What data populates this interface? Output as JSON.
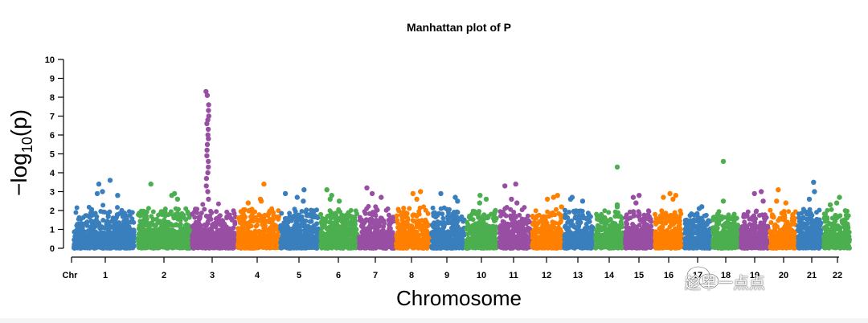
{
  "chart_data": {
    "type": "scatter",
    "title": "Manhattan plot of P",
    "xlabel": "Chromosome",
    "ylabel": "−log10(p)",
    "ylabel_main": "−log",
    "ylabel_sub": "10",
    "ylabel_paren": "(p)",
    "x_prefix_label": "Chr",
    "ylim": [
      0,
      10
    ],
    "yticks": [
      "0",
      "1",
      "2",
      "3",
      "4",
      "5",
      "6",
      "7",
      "8",
      "9",
      "10"
    ],
    "chromosomes": [
      {
        "label": "1",
        "color": "#3a7fbd",
        "base_max": 2.3,
        "top": [
          3.6,
          3.4,
          3.0,
          2.9,
          2.8
        ]
      },
      {
        "label": "2",
        "color": "#4caf4f",
        "base_max": 2.2,
        "top": [
          3.4,
          2.9,
          2.8,
          2.6
        ]
      },
      {
        "label": "3",
        "color": "#984ea3",
        "base_max": 2.4,
        "top": [
          8.3,
          8.1,
          7.6,
          7.3,
          7.0,
          6.8,
          6.6,
          6.3,
          6.0,
          5.8,
          5.5,
          5.2,
          4.9,
          4.6,
          4.3,
          4.0,
          3.7,
          3.3,
          3.0,
          2.6
        ]
      },
      {
        "label": "4",
        "color": "#ff7f00",
        "base_max": 2.2,
        "top": [
          3.4,
          2.6,
          2.5,
          2.4
        ]
      },
      {
        "label": "5",
        "color": "#3a7fbd",
        "base_max": 2.2,
        "top": [
          3.1,
          2.9,
          2.7,
          2.5
        ]
      },
      {
        "label": "6",
        "color": "#4caf4f",
        "base_max": 2.1,
        "top": [
          3.1,
          2.8,
          2.6,
          2.5
        ]
      },
      {
        "label": "7",
        "color": "#984ea3",
        "base_max": 2.3,
        "top": [
          3.2,
          2.9,
          2.7
        ]
      },
      {
        "label": "8",
        "color": "#ff7f00",
        "base_max": 2.2,
        "top": [
          3.0,
          2.9,
          2.6
        ]
      },
      {
        "label": "9",
        "color": "#3a7fbd",
        "base_max": 2.2,
        "top": [
          2.9,
          2.7,
          2.5
        ]
      },
      {
        "label": "10",
        "color": "#4caf4f",
        "base_max": 2.1,
        "top": [
          2.8,
          2.6,
          2.4
        ]
      },
      {
        "label": "11",
        "color": "#984ea3",
        "base_max": 2.2,
        "top": [
          3.4,
          3.3,
          2.6,
          2.4
        ]
      },
      {
        "label": "12",
        "color": "#ff7f00",
        "base_max": 2.2,
        "top": [
          2.8,
          2.7,
          2.6
        ]
      },
      {
        "label": "13",
        "color": "#3a7fbd",
        "base_max": 2.1,
        "top": [
          2.7,
          2.6,
          2.5
        ]
      },
      {
        "label": "14",
        "color": "#4caf4f",
        "base_max": 2.0,
        "top": [
          4.3,
          2.3,
          2.2
        ]
      },
      {
        "label": "15",
        "color": "#984ea3",
        "base_max": 2.0,
        "top": [
          2.8,
          2.7,
          2.4
        ]
      },
      {
        "label": "16",
        "color": "#ff7f00",
        "base_max": 2.1,
        "top": [
          2.9,
          2.8,
          2.7,
          2.6
        ]
      },
      {
        "label": "17",
        "color": "#3a7fbd",
        "base_max": 1.9,
        "top": [
          2.2,
          2.1
        ]
      },
      {
        "label": "18",
        "color": "#4caf4f",
        "base_max": 2.0,
        "top": [
          4.6,
          2.5
        ]
      },
      {
        "label": "19",
        "color": "#984ea3",
        "base_max": 2.0,
        "top": [
          3.0,
          2.9,
          2.5
        ]
      },
      {
        "label": "20",
        "color": "#ff7f00",
        "base_max": 2.1,
        "top": [
          3.1,
          2.5,
          2.4
        ]
      },
      {
        "label": "21",
        "color": "#3a7fbd",
        "base_max": 2.1,
        "top": [
          3.5,
          3.0,
          2.6
        ]
      },
      {
        "label": "22",
        "color": "#4caf4f",
        "base_max": 2.1,
        "top": [
          2.7,
          2.4,
          2.3
        ]
      }
    ]
  },
  "watermark": {
    "text": "趁早一点点",
    "icon": "wechat-icon"
  }
}
